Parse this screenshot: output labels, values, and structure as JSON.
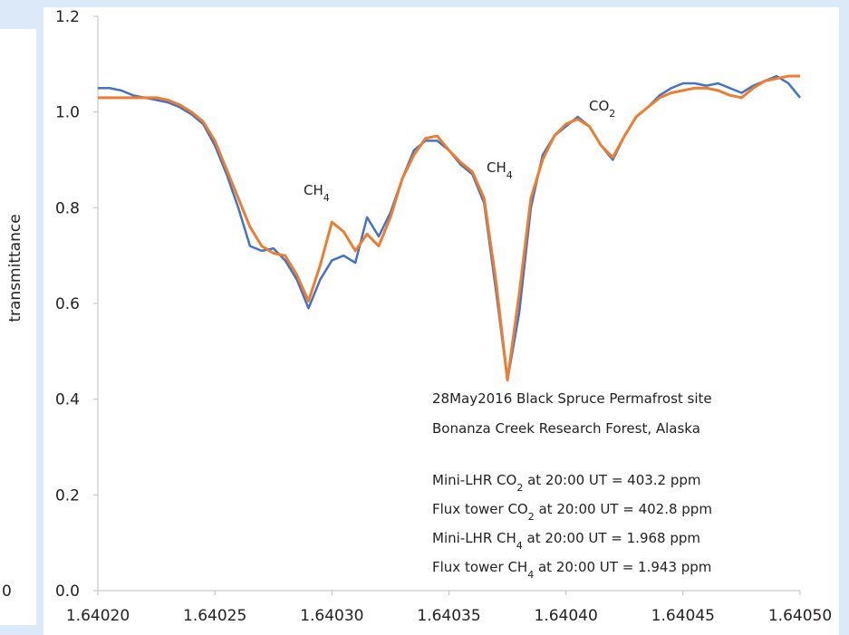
{
  "chart_data": {
    "type": "line",
    "y_label": "transmittance",
    "side_text": "0",
    "x": [
      1.6402,
      1.640205,
      1.64021,
      1.640215,
      1.64022,
      1.640225,
      1.64023,
      1.640235,
      1.64024,
      1.640245,
      1.64025,
      1.640255,
      1.64026,
      1.640265,
      1.64027,
      1.640275,
      1.64028,
      1.640285,
      1.64029,
      1.640295,
      1.6403,
      1.640305,
      1.64031,
      1.640315,
      1.64032,
      1.640325,
      1.64033,
      1.640335,
      1.64034,
      1.640345,
      1.64035,
      1.640355,
      1.64036,
      1.640365,
      1.64037,
      1.640375,
      1.64038,
      1.640385,
      1.64039,
      1.640395,
      1.6404,
      1.640405,
      1.64041,
      1.640415,
      1.64042,
      1.640425,
      1.64043,
      1.640435,
      1.64044,
      1.640445,
      1.64045,
      1.640455,
      1.64046,
      1.640465,
      1.64047,
      1.640475,
      1.64048,
      1.640485,
      1.64049,
      1.640495,
      1.6405
    ],
    "series": [
      {
        "color": "#4472c4",
        "values": [
          1.05,
          1.05,
          1.045,
          1.035,
          1.03,
          1.025,
          1.02,
          1.01,
          0.995,
          0.975,
          0.93,
          0.87,
          0.8,
          0.72,
          0.71,
          0.715,
          0.69,
          0.65,
          0.59,
          0.65,
          0.69,
          0.7,
          0.685,
          0.78,
          0.74,
          0.79,
          0.86,
          0.92,
          0.94,
          0.94,
          0.92,
          0.89,
          0.87,
          0.81,
          0.63,
          0.44,
          0.58,
          0.8,
          0.91,
          0.95,
          0.97,
          0.99,
          0.97,
          0.93,
          0.9,
          0.95,
          0.99,
          1.01,
          1.035,
          1.05,
          1.06,
          1.06,
          1.055,
          1.06,
          1.05,
          1.04,
          1.055,
          1.065,
          1.075,
          1.06,
          1.03
        ]
      },
      {
        "color": "#ed7d31",
        "values": [
          1.03,
          1.03,
          1.03,
          1.03,
          1.03,
          1.03,
          1.025,
          1.015,
          1.0,
          0.98,
          0.94,
          0.88,
          0.82,
          0.76,
          0.72,
          0.705,
          0.7,
          0.66,
          0.605,
          0.68,
          0.77,
          0.75,
          0.71,
          0.745,
          0.72,
          0.78,
          0.86,
          0.91,
          0.945,
          0.95,
          0.92,
          0.895,
          0.875,
          0.82,
          0.65,
          0.44,
          0.62,
          0.82,
          0.9,
          0.95,
          0.975,
          0.985,
          0.97,
          0.93,
          0.905,
          0.95,
          0.99,
          1.01,
          1.03,
          1.04,
          1.045,
          1.05,
          1.05,
          1.045,
          1.035,
          1.03,
          1.05,
          1.065,
          1.07,
          1.075,
          1.075
        ]
      }
    ],
    "xlim": [
      1.6402,
      1.6405
    ],
    "xticks": [
      {
        "value": 1.6402,
        "label": "1.64020"
      },
      {
        "value": 1.64025,
        "label": "1.64025"
      },
      {
        "value": 1.6403,
        "label": "1.64030"
      },
      {
        "value": 1.64035,
        "label": "1.64035"
      },
      {
        "value": 1.6404,
        "label": "1.64040"
      },
      {
        "value": 1.64045,
        "label": "1.64045"
      },
      {
        "value": 1.6405,
        "label": "1.64050"
      }
    ],
    "ylim": [
      0,
      1.2
    ],
    "yticks": [
      {
        "value": 0,
        "label": "0.0"
      },
      {
        "value": 0.2,
        "label": "0.2"
      },
      {
        "value": 0.4,
        "label": "0.4"
      },
      {
        "value": 0.6,
        "label": "0.6"
      },
      {
        "value": 0.8,
        "label": "0.8"
      },
      {
        "value": 1.0,
        "label": "1.0"
      },
      {
        "value": 1.2,
        "label": "1.2"
      }
    ],
    "annotations": [
      {
        "parts": [
          "CH",
          "4"
        ]
      },
      {
        "parts": [
          "CH",
          "4"
        ]
      },
      {
        "parts": [
          "CO",
          "2"
        ]
      },
      {
        "parts": [
          "28May2016  Black Spruce Permafrost site"
        ]
      },
      {
        "parts": [
          "Bonanza Creek Research Forest, Alaska"
        ]
      },
      {
        "parts": [
          "Mini-LHR CO",
          "2",
          " at 20:00 UT = 403.2 ppm"
        ]
      },
      {
        "parts": [
          "Flux tower CO",
          "2",
          " at 20:00 UT = 402.8 ppm"
        ]
      },
      {
        "parts": [
          "Mini-LHR CH",
          "4",
          " at 20:00 UT = 1.968 ppm"
        ]
      },
      {
        "parts": [
          "Flux tower CH",
          "4",
          " at 20:00 UT = 1.943 ppm"
        ]
      }
    ]
  }
}
